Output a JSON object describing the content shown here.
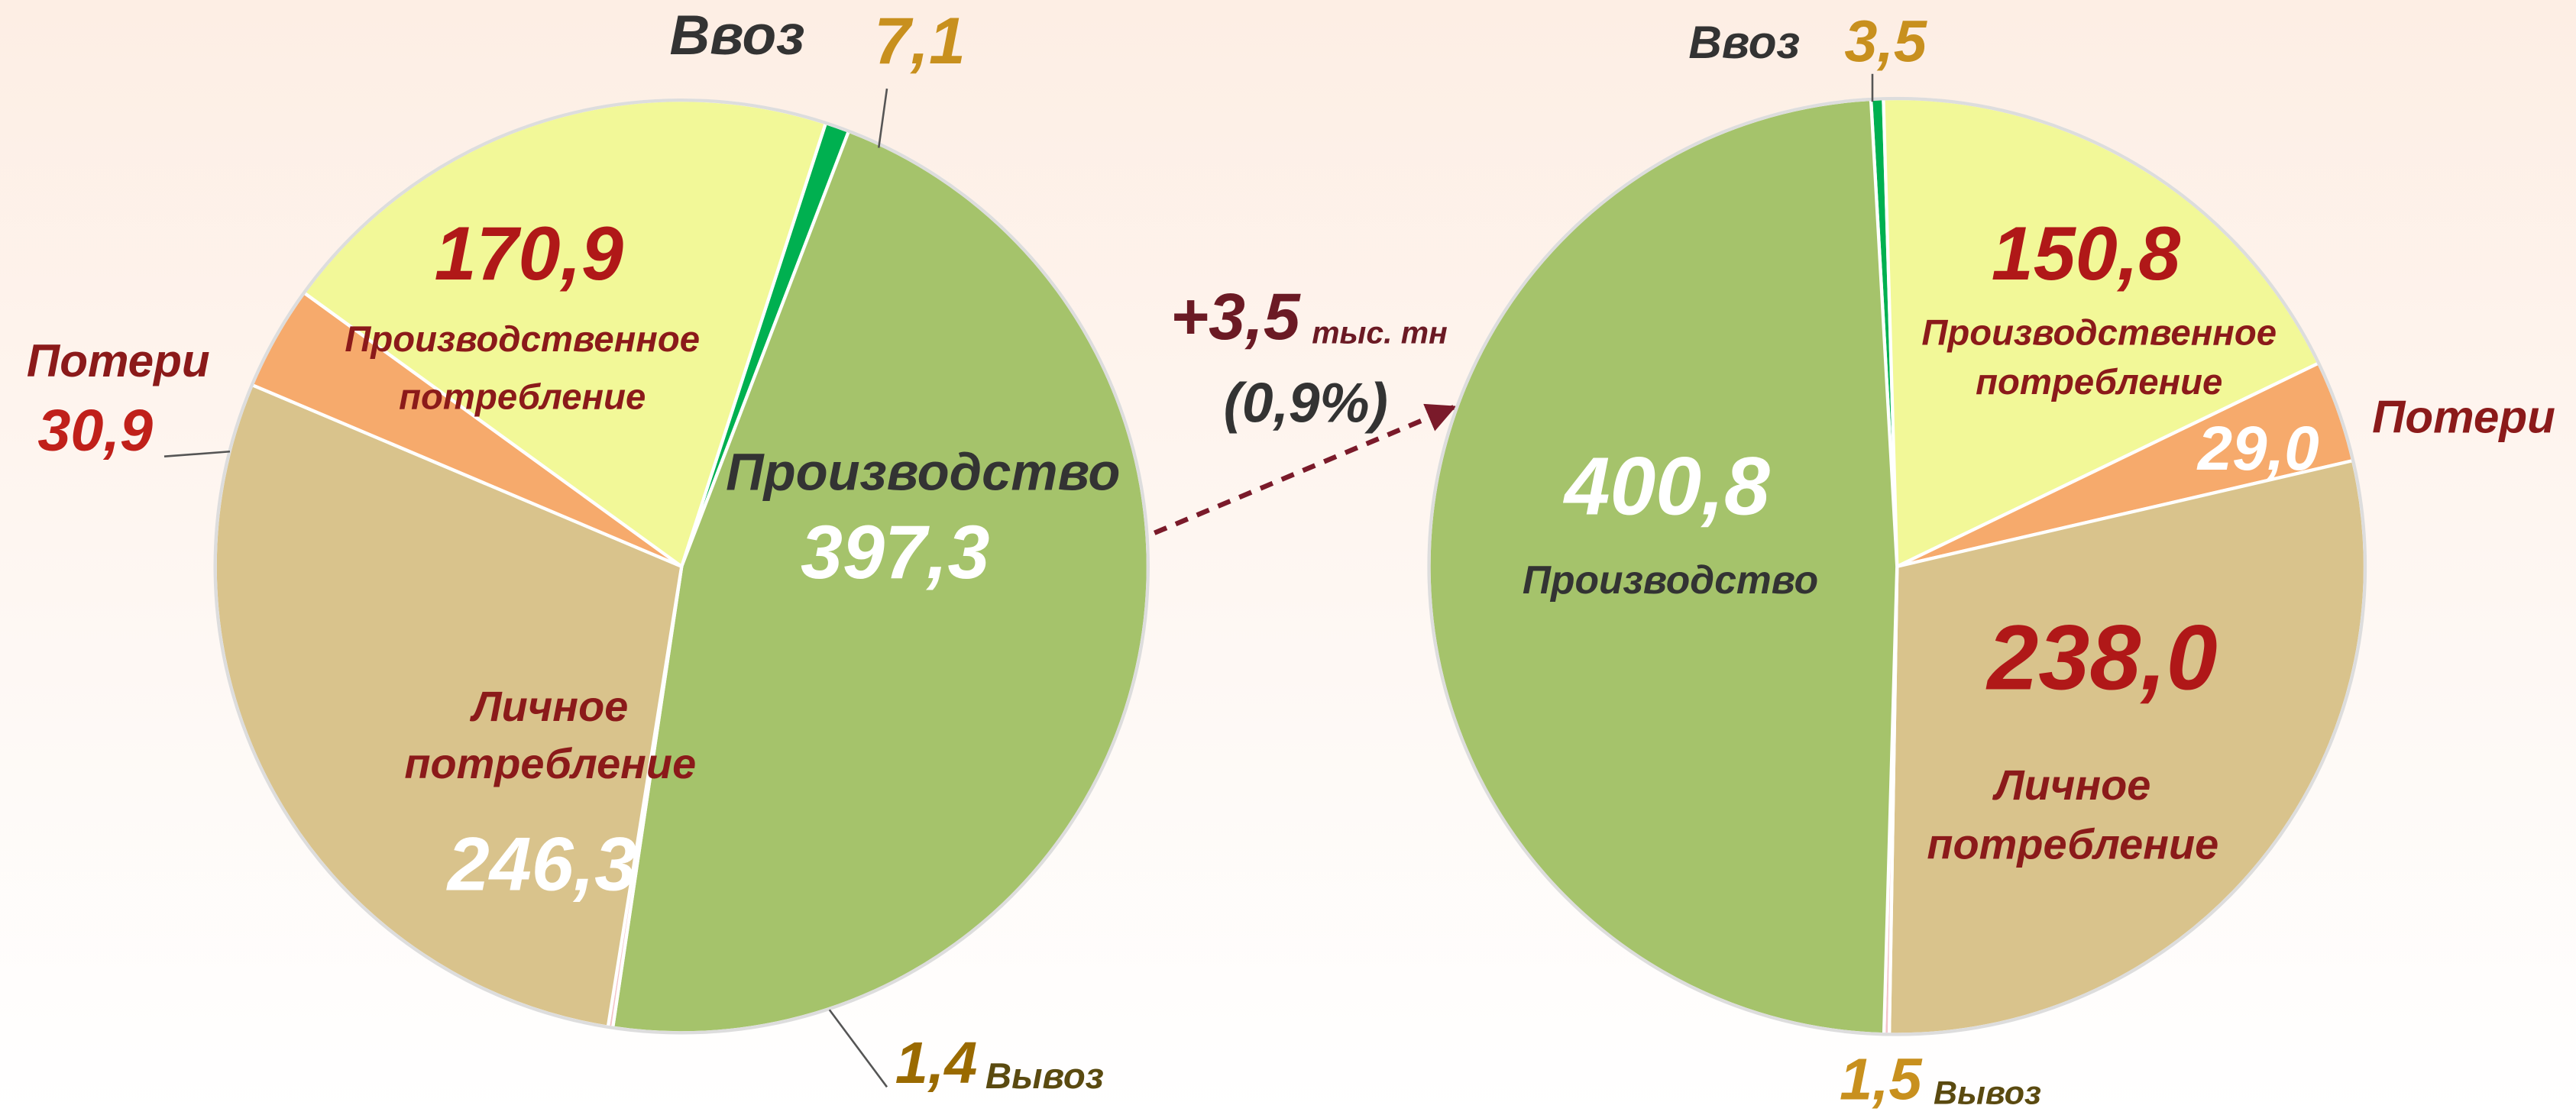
{
  "chart_data": [
    {
      "type": "pie",
      "categories": [
        "Ввоз",
        "Производство",
        "Вывоз",
        "Личное потребление",
        "Потери",
        "Производственное потребление"
      ],
      "values": [
        7.1,
        397.3,
        1.4,
        246.3,
        30.9,
        170.9
      ],
      "value_labels": [
        "7,1",
        "397,3",
        "1,4",
        "246,3",
        "30,9",
        "170,9"
      ],
      "colors": [
        "#00b050",
        "#a5c36b",
        "#f4c4c8",
        "#d9c38c",
        "#f6aa6c",
        "#f2f898"
      ]
    },
    {
      "type": "pie",
      "categories": [
        "Ввоз",
        "Производственное потребление",
        "Потери",
        "Личное потребление",
        "Вывоз",
        "Производство"
      ],
      "values": [
        3.5,
        150.8,
        29.0,
        238.0,
        1.5,
        400.8
      ],
      "value_labels": [
        "3,5",
        "150,8",
        "29,0",
        "238,0",
        "1,5",
        "400,8"
      ],
      "colors": [
        "#00b050",
        "#f2f898",
        "#f6aa6c",
        "#d9c38c",
        "#f4c4c8",
        "#a5c36b"
      ]
    }
  ],
  "annotation": {
    "change": "+3,5",
    "unit": "тыс. тн",
    "percent": "(0,9%)"
  }
}
